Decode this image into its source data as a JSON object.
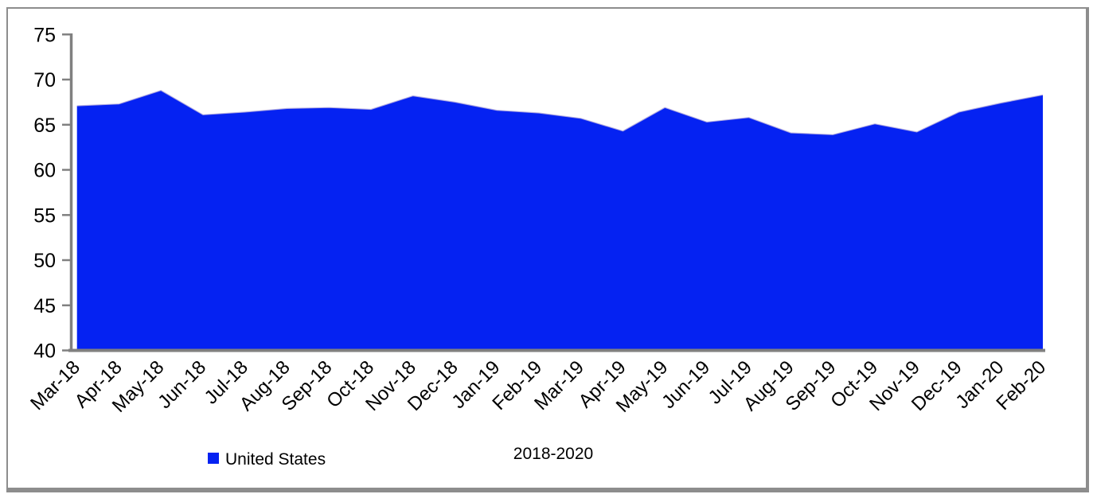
{
  "colors": {
    "area_fill": "#0522f2",
    "area_edge": "#b6aede",
    "axis": "#808080",
    "text": "#000000",
    "frame_border": "#8d8d8d",
    "background": "#ffffff"
  },
  "legend": {
    "label": "United States",
    "swatch_color": "#0522f2"
  },
  "chart_data": {
    "type": "area",
    "title": "",
    "xlabel": "2018-2020",
    "ylabel": "",
    "categories": [
      "Mar-18",
      "Apr-18",
      "May-18",
      "Jun-18",
      "Jul-18",
      "Aug-18",
      "Sep-18",
      "Oct-18",
      "Nov-18",
      "Dec-18",
      "Jan-19",
      "Feb-19",
      "Mar-19",
      "Apr-19",
      "May-19",
      "Jun-19",
      "Jul-19",
      "Aug-19",
      "Sep-19",
      "Oct-19",
      "Nov-19",
      "Dec-19",
      "Jan-20",
      "Feb-20"
    ],
    "series": [
      {
        "name": "United States",
        "values": [
          67.1,
          67.3,
          68.8,
          66.1,
          66.4,
          66.8,
          66.9,
          66.7,
          68.2,
          67.5,
          66.6,
          66.3,
          65.7,
          64.3,
          66.9,
          65.3,
          65.8,
          64.1,
          63.9,
          65.1,
          64.2,
          66.4,
          67.4,
          68.3
        ]
      }
    ],
    "ylim": [
      40,
      75
    ],
    "yticks": [
      75,
      70,
      65,
      60,
      55,
      50,
      45,
      40
    ],
    "x_tick_rotation": -45,
    "grid": false,
    "legend_position": "bottom-left"
  }
}
